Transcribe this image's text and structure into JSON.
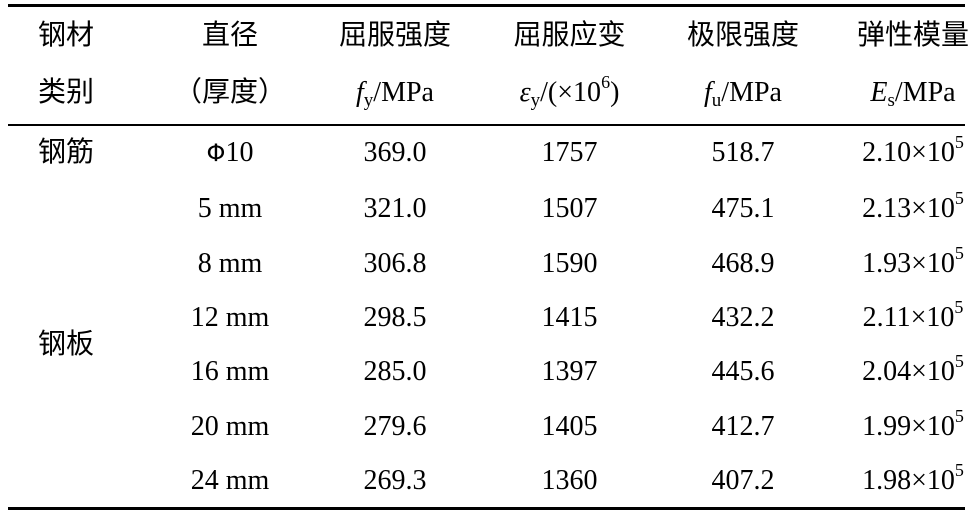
{
  "header": {
    "row1": [
      "钢材",
      "直径",
      "屈服强度",
      "屈服应变",
      "极限强度",
      "弹性模量"
    ],
    "row2_c0": "类别",
    "row2_c1": "（厚度）",
    "units": {
      "fy_sym": "f",
      "fy_sub": "y",
      "fy_unit": "/MPa",
      "ey_sym": "ε",
      "ey_sub": "y",
      "ey_unit_pre": "/(×10",
      "ey_exp": "6",
      "ey_unit_post": ")",
      "fu_sym": "f",
      "fu_sub": "u",
      "fu_unit": "/MPa",
      "es_sym": "E",
      "es_sub": "s",
      "es_unit": "/MPa"
    }
  },
  "categories": {
    "rebar": "钢筋",
    "plate": "钢板"
  },
  "rows": [
    {
      "phi": "Φ",
      "size": "10",
      "fy": "369.0",
      "ey": "1757",
      "fu": "518.7",
      "es_mant": "2.10×10",
      "es_exp": "5"
    },
    {
      "size": "5 mm",
      "fy": "321.0",
      "ey": "1507",
      "fu": "475.1",
      "es_mant": "2.13×10",
      "es_exp": "5"
    },
    {
      "size": "8 mm",
      "fy": "306.8",
      "ey": "1590",
      "fu": "468.9",
      "es_mant": "1.93×10",
      "es_exp": "5"
    },
    {
      "size": "12 mm",
      "fy": "298.5",
      "ey": "1415",
      "fu": "432.2",
      "es_mant": "2.11×10",
      "es_exp": "5"
    },
    {
      "size": "16 mm",
      "fy": "285.0",
      "ey": "1397",
      "fu": "445.6",
      "es_mant": "2.04×10",
      "es_exp": "5"
    },
    {
      "size": "20 mm",
      "fy": "279.6",
      "ey": "1405",
      "fu": "412.7",
      "es_mant": "1.99×10",
      "es_exp": "5"
    },
    {
      "size": "24 mm",
      "fy": "269.3",
      "ey": "1360",
      "fu": "407.2",
      "es_mant": "1.98×10",
      "es_exp": "5"
    }
  ]
}
